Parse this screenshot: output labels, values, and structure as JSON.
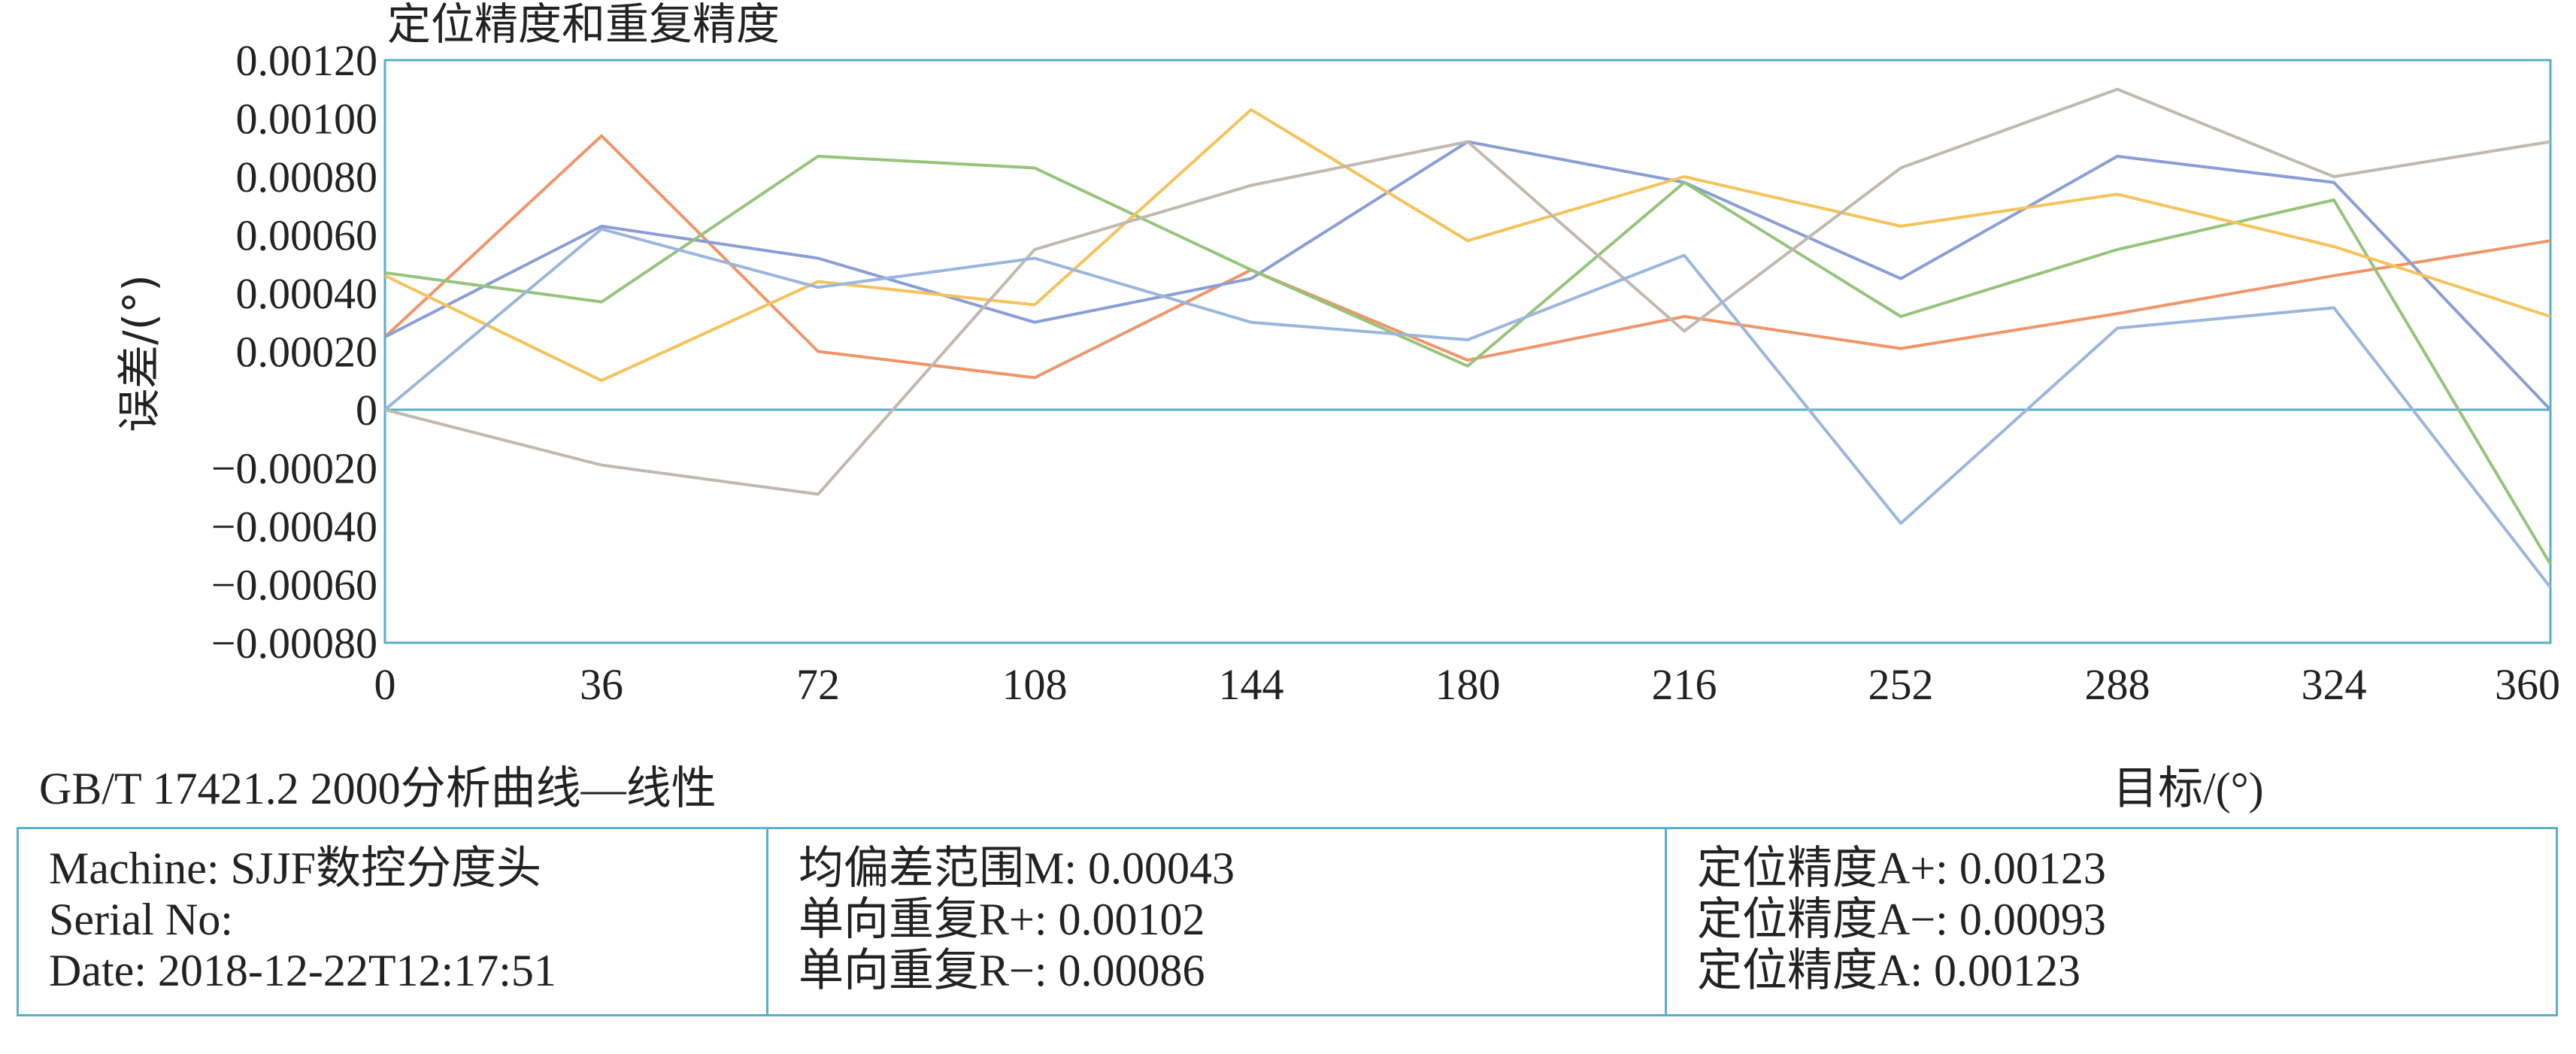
{
  "chart_data": {
    "type": "line",
    "title": "定位精度和重复精度",
    "xlabel": "目标/(°)",
    "ylabel": "误差/(°)",
    "x": [
      0,
      36,
      72,
      108,
      144,
      180,
      216,
      252,
      288,
      324,
      360
    ],
    "x_ticks": [
      "0",
      "36",
      "72",
      "108",
      "144",
      "180",
      "216",
      "252",
      "288",
      "324",
      "360"
    ],
    "ylim": [
      -0.0008,
      0.0012
    ],
    "y_ticks": [
      "0.00120",
      "0.00100",
      "0.00080",
      "0.00060",
      "0.00040",
      "0.00020",
      "0",
      "−0.00020",
      "−0.00040",
      "−0.00060",
      "−0.00080"
    ],
    "y_tick_values": [
      0.0012,
      0.001,
      0.0008,
      0.0006,
      0.0004,
      0.0002,
      0,
      -0.0002,
      -0.0004,
      -0.0006,
      -0.0008
    ],
    "grid": false,
    "legend": "none",
    "series": [
      {
        "color": "#f0956a",
        "values": [
          0.00025,
          0.00094,
          0.0002,
          0.00011,
          0.00048,
          0.00017,
          0.00032,
          0.00021,
          0.00033,
          0.00046,
          0.00058
        ]
      },
      {
        "color": "#8a9ed6",
        "values": [
          0.00025,
          0.00063,
          0.00052,
          0.0003,
          0.00045,
          0.00092,
          0.00078,
          0.00045,
          0.00087,
          0.00078,
          0.0
        ]
      },
      {
        "color": "#95c47a",
        "values": [
          0.00047,
          0.00037,
          0.00087,
          0.00083,
          0.00048,
          0.00015,
          0.00078,
          0.00032,
          0.00055,
          0.00072,
          -0.00053
        ]
      },
      {
        "color": "#f5c35a",
        "values": [
          0.00046,
          0.0001,
          0.00044,
          0.00036,
          0.00103,
          0.00058,
          0.0008,
          0.00063,
          0.00074,
          0.00056,
          0.00032
        ]
      },
      {
        "color": "#c2b8b2",
        "values": [
          0.0,
          -0.00019,
          -0.00029,
          0.00055,
          0.00077,
          0.00092,
          0.00027,
          0.00083,
          0.0011,
          0.0008,
          0.00092
        ]
      },
      {
        "color": "#9bb6dc",
        "values": [
          0.0,
          0.00062,
          0.00042,
          0.00052,
          0.0003,
          0.00024,
          0.00053,
          -0.00039,
          0.00028,
          0.00035,
          -0.00061
        ]
      }
    ]
  },
  "footer": {
    "standard": "GB/T 17421.2 2000分析曲线—线性",
    "columns": [
      {
        "lines": [
          "Machine: SJJF数控分度头",
          "Serial No:",
          "Date: 2018-12-22T12:17:51"
        ]
      },
      {
        "lines": [
          "均偏差范围M: 0.00043",
          "单向重复R+: 0.00102",
          "单向重复R−: 0.00086"
        ]
      },
      {
        "lines": [
          "定位精度A+: 0.00123",
          "定位精度A−: 0.00093",
          "定位精度A: 0.00123"
        ]
      }
    ]
  },
  "colors": {
    "frame": "#5aaec9",
    "zero_line": "#5aaec9"
  }
}
